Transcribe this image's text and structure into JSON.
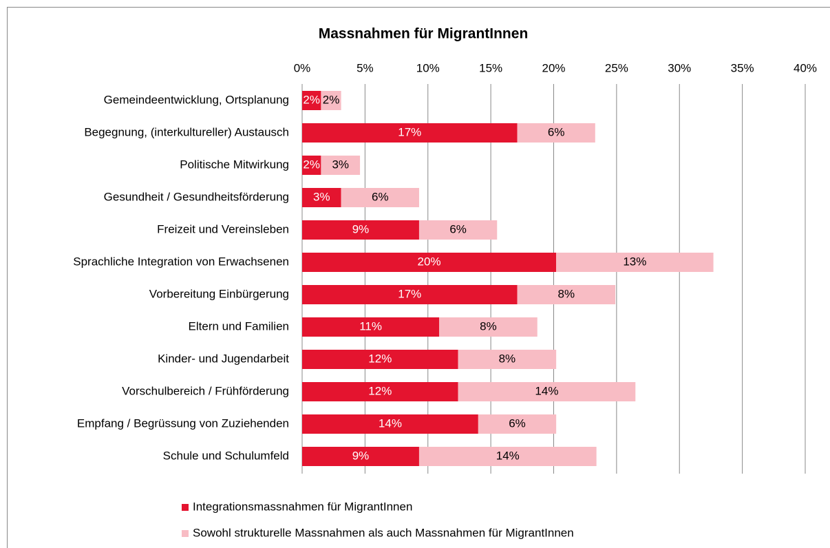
{
  "chart_data": {
    "type": "stacked-bar-horizontal",
    "title": "Massnahmen für MigrantInnen",
    "categories": [
      "Gemeindeentwicklung, Ortsplanung",
      "Begegnung, (interkultureller) Austausch",
      "Politische Mitwirkung",
      "Gesundheit / Gesundheitsförderung",
      "Freizeit und Vereinsleben",
      "Sprachliche Integration von Erwachsenen",
      "Vorbereitung Einbürgerung",
      "Eltern und Familien",
      "Kinder- und Jugendarbeit",
      "Vorschulbereich / Frühförderung",
      "Empfang / Begrüssung von Zuziehenden",
      "Schule und Schulumfeld"
    ],
    "series": [
      {
        "name": "Integrationsmassnahmen für MigrantInnen",
        "color": "#e4142f",
        "label_color": "#ffffff",
        "values": [
          1.5,
          17.1,
          1.5,
          3.1,
          9.3,
          20.2,
          17.1,
          10.9,
          12.4,
          12.4,
          14.0,
          9.3
        ],
        "value_labels": [
          "2%",
          "17%",
          "2%",
          "3%",
          "9%",
          "20%",
          "17%",
          "11%",
          "12%",
          "12%",
          "14%",
          "9%"
        ]
      },
      {
        "name": "Sowohl strukturelle Massnahmen als auch Massnahmen für MigrantInnen",
        "color": "#f8bcc4",
        "label_color": "#000000",
        "values": [
          1.6,
          6.2,
          3.1,
          6.2,
          6.2,
          12.5,
          7.8,
          7.8,
          7.8,
          14.1,
          6.2,
          14.1
        ],
        "value_labels": [
          "2%",
          "6%",
          "3%",
          "6%",
          "6%",
          "13%",
          "8%",
          "8%",
          "8%",
          "14%",
          "6%",
          "14%"
        ]
      }
    ],
    "xlim": [
      0,
      40
    ],
    "xticks": [
      {
        "value": 0,
        "label": "0%"
      },
      {
        "value": 5,
        "label": "5%"
      },
      {
        "value": 10,
        "label": "10%"
      },
      {
        "value": 15,
        "label": "15%"
      },
      {
        "value": 20,
        "label": "20%"
      },
      {
        "value": 25,
        "label": "25%"
      },
      {
        "value": 30,
        "label": "30%"
      },
      {
        "value": 35,
        "label": "35%"
      },
      {
        "value": 40,
        "label": "40%"
      }
    ],
    "grid": true,
    "legend": "bottom"
  }
}
